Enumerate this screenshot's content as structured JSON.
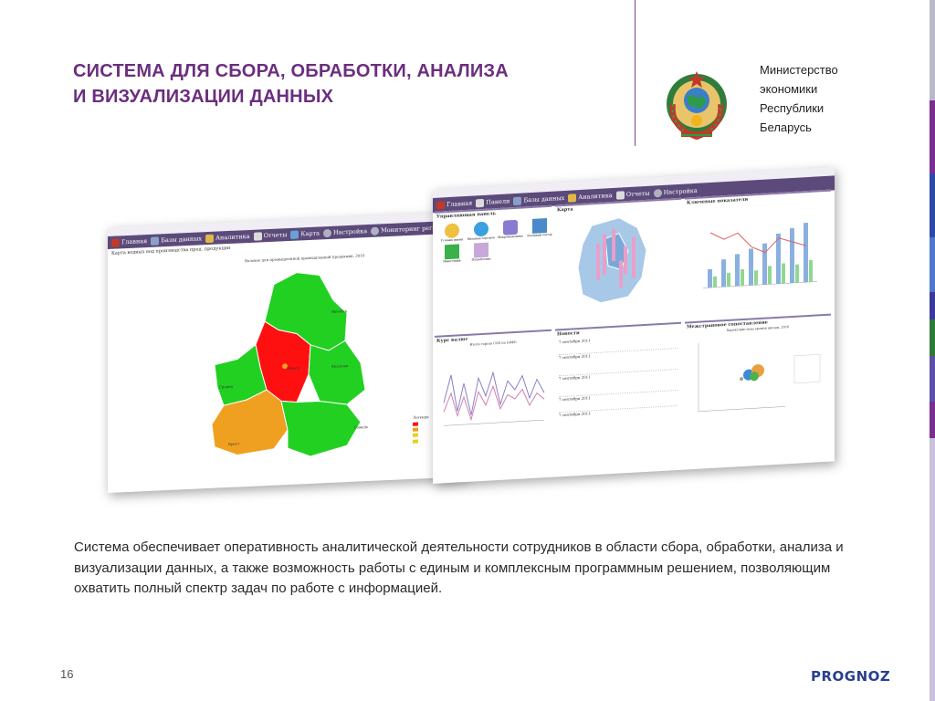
{
  "slide": {
    "title_line1": "СИСТЕМА ДЛЯ СБОРА, ОБРАБОТКИ, АНАЛИЗА",
    "title_line2": "И ВИЗУАЛИЗАЦИИ ДАННЫХ",
    "ministry_lines": [
      "Министерство",
      "экономики",
      "Республики",
      "Беларусь"
    ],
    "body": "Система обеспечивает оперативность аналитической деятельности сотрудников в области сбора, обработки, анализа и визуализации данных, а также возможность работы с единым и комплексным программным решением, позволяющим охватить полный спектр задач по работе с информацией.",
    "page_number": "16",
    "logo": "PROGNOZ",
    "colors": {
      "accent": "#6b2e7e",
      "logo": "#2a3f8f"
    }
  },
  "shot_map": {
    "menu": [
      "Главная",
      "Базы данных",
      "Аналитика",
      "Отчеты",
      "Карта",
      "Настройка",
      "Мониторинг регионов"
    ],
    "subtitle": "Карта водных вод производства прод. продукции",
    "map_title": "Валовое для промышленной промышленной продукции, 2010",
    "cities": [
      "Витебск",
      "Могилев",
      "Гродно",
      "Минск",
      "Гомель",
      "Брест"
    ],
    "legend_title": "Легенда"
  },
  "shot_dash": {
    "menu": [
      "Главная",
      "Панели",
      "Базы данных",
      "Аналитика",
      "Отчеты",
      "Настройка"
    ],
    "panels": {
      "control": "Управляющая панель",
      "map": "Карта",
      "indicators": "Ключевые показатели",
      "currency": "Курс валют",
      "news": "Новости",
      "interregional": "Межстрановое сопоставление"
    },
    "control_items": [
      "Условия жизни",
      "Внешняя торговля",
      "Макроэкономика",
      "Реальный сектор",
      "Инвестиции",
      "Потребление"
    ],
    "currency_title": "Итоги торгов USD на БВФБ",
    "news_dates": [
      "7 сентября 2011",
      "7 сентября 2011",
      "7 сентября 2011",
      "7 сентября 2011",
      "7 сентября 2011"
    ],
    "bubble_title": "Характеристика уровня жизни, 2010"
  }
}
